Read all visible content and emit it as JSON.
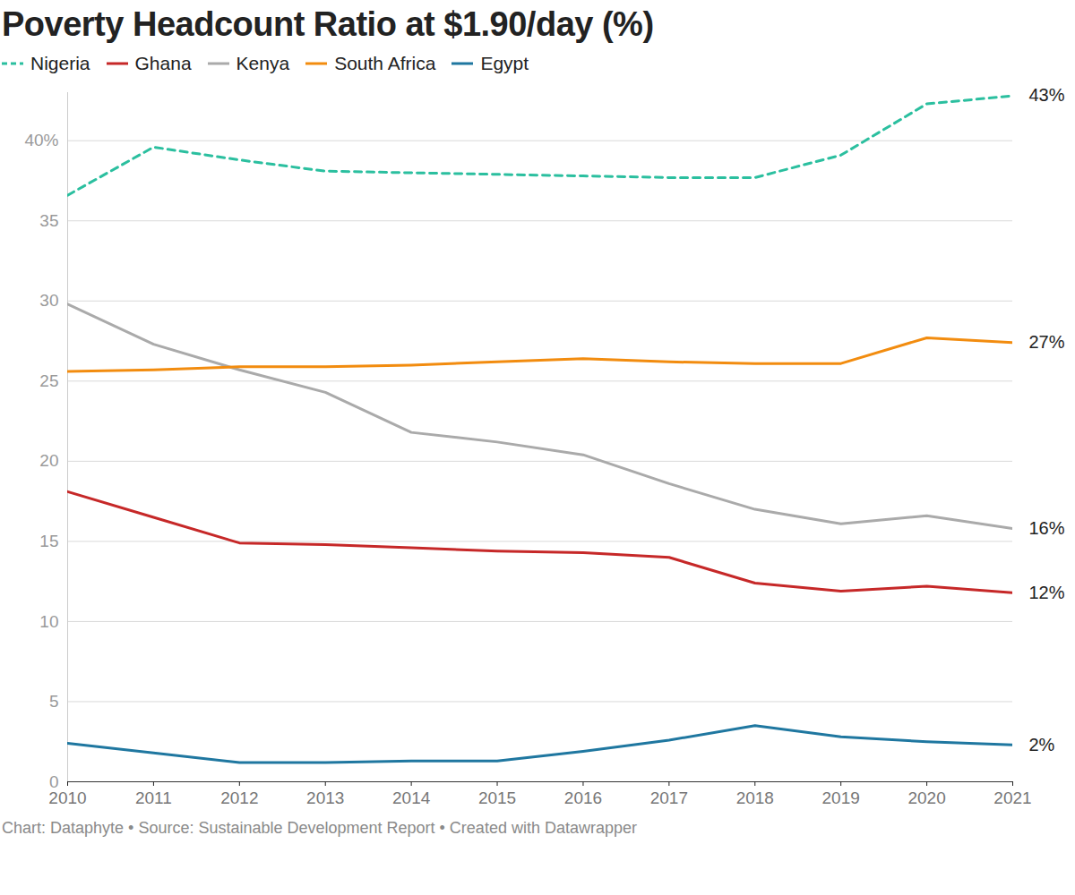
{
  "chart_data": {
    "type": "line",
    "title": "Poverty Headcount Ratio at $1.90/day (%)",
    "caption": "Chart: Dataphyte • Source: Sustainable Development Report • Created with Datawrapper",
    "x": [
      2010,
      2011,
      2012,
      2013,
      2014,
      2015,
      2016,
      2017,
      2018,
      2019,
      2020,
      2021
    ],
    "xlim": [
      2010,
      2021
    ],
    "xticks": [
      2010,
      2011,
      2012,
      2013,
      2014,
      2015,
      2016,
      2017,
      2018,
      2019,
      2020,
      2021
    ],
    "ylim": [
      0,
      43
    ],
    "yticks": [
      0,
      5,
      10,
      15,
      20,
      25,
      30,
      35,
      {
        "value": 40,
        "label": "40%"
      }
    ],
    "grid": true,
    "legend": "top",
    "series": [
      {
        "name": "Nigeria",
        "color": "#2bbf9f",
        "line_style": "dashed",
        "end_label": "43%",
        "values": [
          36.6,
          39.6,
          38.8,
          38.1,
          38.0,
          37.9,
          37.8,
          37.7,
          37.7,
          39.1,
          42.3,
          42.8
        ]
      },
      {
        "name": "Ghana",
        "color": "#c62828",
        "line_style": "solid",
        "end_label": "12%",
        "values": [
          18.1,
          16.5,
          14.9,
          14.8,
          14.6,
          14.4,
          14.3,
          14.0,
          12.4,
          11.9,
          12.2,
          11.8
        ]
      },
      {
        "name": "Kenya",
        "color": "#aaaaaa",
        "line_style": "solid",
        "end_label": "16%",
        "values": [
          29.8,
          27.3,
          25.7,
          24.3,
          21.8,
          21.2,
          20.4,
          18.6,
          17.0,
          16.1,
          16.6,
          15.8
        ]
      },
      {
        "name": "South Africa",
        "color": "#f28c0f",
        "line_style": "solid",
        "end_label": "27%",
        "values": [
          25.6,
          25.7,
          25.9,
          25.9,
          26.0,
          26.2,
          26.4,
          26.2,
          26.1,
          26.1,
          27.7,
          27.4
        ]
      },
      {
        "name": "Egypt",
        "color": "#1f77a0",
        "line_style": "solid",
        "end_label": "2%",
        "values": [
          2.4,
          1.8,
          1.2,
          1.2,
          1.3,
          1.3,
          1.9,
          2.6,
          3.5,
          2.8,
          2.5,
          2.3
        ]
      }
    ]
  }
}
